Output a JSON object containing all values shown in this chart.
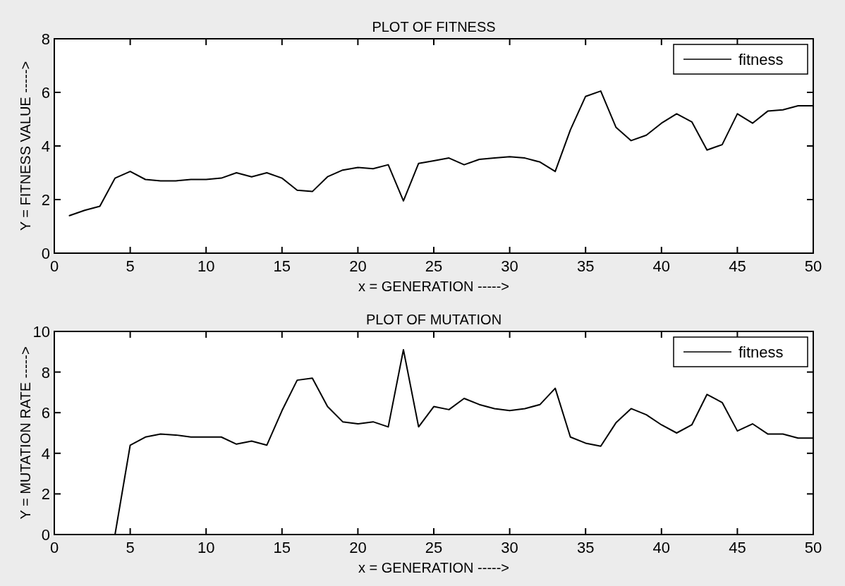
{
  "chart_data": [
    {
      "type": "line",
      "title": "PLOT OF FITNESS",
      "xlabel": "x = GENERATION ----->",
      "ylabel": "Y = FITNESS VALUE ----->",
      "x": [
        1,
        2,
        3,
        4,
        5,
        6,
        7,
        8,
        9,
        10,
        11,
        12,
        13,
        14,
        15,
        16,
        17,
        18,
        19,
        20,
        21,
        22,
        23,
        24,
        25,
        26,
        27,
        28,
        29,
        30,
        31,
        32,
        33,
        34,
        35,
        36,
        37,
        38,
        39,
        40,
        41,
        42,
        43,
        44,
        45,
        46,
        47,
        48,
        49,
        50
      ],
      "series": [
        {
          "name": "fitness",
          "color": "#000000",
          "values": [
            1.4,
            1.6,
            1.75,
            2.8,
            3.05,
            2.75,
            2.7,
            2.7,
            2.75,
            2.75,
            2.8,
            3.0,
            2.85,
            3.0,
            2.8,
            2.35,
            2.3,
            2.85,
            3.1,
            3.2,
            3.15,
            3.3,
            1.95,
            3.35,
            3.45,
            3.55,
            3.3,
            3.5,
            3.55,
            3.6,
            3.55,
            3.4,
            3.05,
            4.6,
            5.85,
            6.05,
            4.7,
            4.2,
            4.4,
            4.85,
            5.2,
            4.9,
            3.85,
            4.05,
            5.2,
            4.85,
            5.3,
            5.35,
            5.5,
            5.5
          ]
        }
      ],
      "xlim": [
        0,
        50
      ],
      "xticks": [
        0,
        5,
        10,
        15,
        20,
        25,
        30,
        35,
        40,
        45,
        50
      ],
      "ylim": [
        0,
        8
      ],
      "yticks": [
        0,
        2,
        4,
        6,
        8
      ],
      "legend": "top right",
      "grid": false
    },
    {
      "type": "line",
      "title": "PLOT OF MUTATION",
      "xlabel": "x = GENERATION ----->",
      "ylabel": "Y = MUTATION RATE ----->",
      "x": [
        1,
        2,
        3,
        4,
        5,
        6,
        7,
        8,
        9,
        10,
        11,
        12,
        13,
        14,
        15,
        16,
        17,
        18,
        19,
        20,
        21,
        22,
        23,
        24,
        25,
        26,
        27,
        28,
        29,
        30,
        31,
        32,
        33,
        34,
        35,
        36,
        37,
        38,
        39,
        40,
        41,
        42,
        43,
        44,
        45,
        46,
        47,
        48,
        49,
        50
      ],
      "series": [
        {
          "name": "fitness",
          "color": "#000000",
          "values": [
            0,
            0,
            0,
            0,
            4.4,
            4.8,
            4.95,
            4.9,
            4.8,
            4.8,
            4.8,
            4.45,
            4.6,
            4.4,
            6.1,
            7.6,
            7.7,
            6.3,
            5.55,
            5.45,
            5.55,
            5.3,
            9.1,
            5.3,
            6.3,
            6.15,
            6.7,
            6.4,
            6.2,
            6.1,
            6.2,
            6.4,
            7.2,
            4.8,
            4.5,
            4.35,
            5.5,
            6.2,
            5.9,
            5.4,
            5.0,
            5.4,
            6.9,
            6.5,
            5.1,
            5.45,
            4.95,
            4.95,
            4.75,
            4.75
          ]
        }
      ],
      "xlim": [
        0,
        50
      ],
      "xticks": [
        0,
        5,
        10,
        15,
        20,
        25,
        30,
        35,
        40,
        45,
        50
      ],
      "ylim": [
        0,
        10
      ],
      "yticks": [
        0,
        2,
        4,
        6,
        8,
        10
      ],
      "legend": "top right",
      "grid": false
    }
  ]
}
